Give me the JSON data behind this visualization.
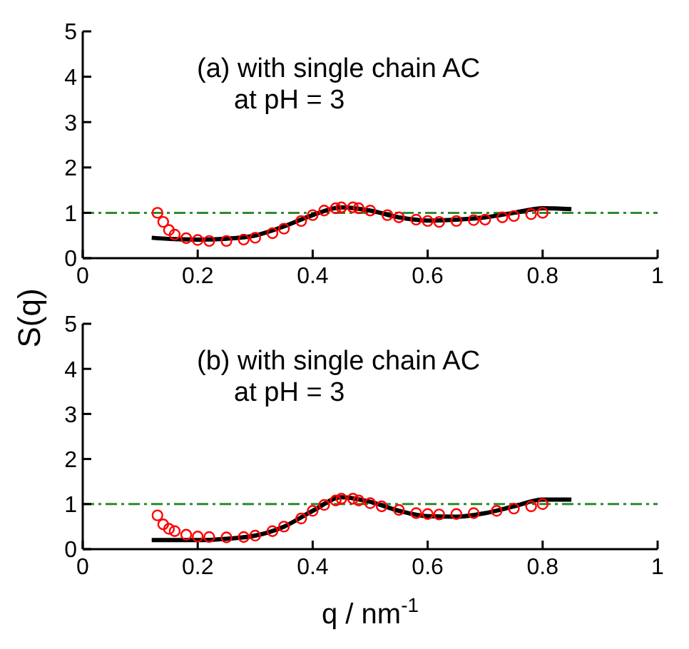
{
  "chart_data": [
    {
      "type": "scatter",
      "ylabel": "S(q)",
      "annotations": [
        "(a) with single chain AC",
        "at pH = 3"
      ],
      "xlim": [
        0,
        1
      ],
      "xticks": [
        0,
        0.2,
        0.4,
        0.6,
        0.8,
        1
      ],
      "ylim": [
        0,
        5
      ],
      "yticks": [
        0,
        1,
        2,
        3,
        4,
        5
      ],
      "grid": false,
      "legend": false,
      "ref_lines": [
        {
          "axis": "y",
          "value": 1,
          "color": "#2e8b2e",
          "line_style": "dashed"
        }
      ],
      "series": [
        {
          "type": "scatter",
          "marker": "circle",
          "color": "#ff0000",
          "x": [
            0.13,
            0.14,
            0.15,
            0.16,
            0.18,
            0.2,
            0.22,
            0.25,
            0.28,
            0.3,
            0.33,
            0.35,
            0.38,
            0.4,
            0.42,
            0.44,
            0.45,
            0.47,
            0.48,
            0.5,
            0.53,
            0.55,
            0.58,
            0.6,
            0.62,
            0.65,
            0.68,
            0.7,
            0.73,
            0.75,
            0.78,
            0.8
          ],
          "values": [
            1.0,
            0.8,
            0.62,
            0.52,
            0.44,
            0.4,
            0.38,
            0.38,
            0.41,
            0.45,
            0.55,
            0.65,
            0.82,
            0.95,
            1.05,
            1.1,
            1.12,
            1.12,
            1.1,
            1.05,
            0.95,
            0.9,
            0.85,
            0.82,
            0.8,
            0.82,
            0.84,
            0.85,
            0.9,
            0.93,
            0.97,
            1.0
          ]
        },
        {
          "type": "line",
          "color": "#000000",
          "x": [
            0.12,
            0.16,
            0.2,
            0.25,
            0.3,
            0.35,
            0.4,
            0.45,
            0.5,
            0.55,
            0.6,
            0.65,
            0.7,
            0.75,
            0.8,
            0.85
          ],
          "values": [
            0.45,
            0.42,
            0.41,
            0.43,
            0.5,
            0.7,
            0.95,
            1.12,
            1.05,
            0.9,
            0.83,
            0.85,
            0.9,
            1.0,
            1.1,
            1.08
          ]
        }
      ]
    },
    {
      "type": "scatter",
      "xlabel": "q / nm$^{-1}$",
      "annotations": [
        "(b) with single chain AC",
        "at pH = 3"
      ],
      "xlim": [
        0,
        1
      ],
      "xticks": [
        0,
        0.2,
        0.4,
        0.6,
        0.8,
        1
      ],
      "ylim": [
        0,
        5
      ],
      "yticks": [
        0,
        1,
        2,
        3,
        4,
        5
      ],
      "grid": false,
      "legend": false,
      "ref_lines": [
        {
          "axis": "y",
          "value": 1,
          "color": "#2e8b2e",
          "line_style": "dashed"
        }
      ],
      "series": [
        {
          "type": "scatter",
          "marker": "circle",
          "color": "#ff0000",
          "x": [
            0.13,
            0.14,
            0.15,
            0.16,
            0.18,
            0.2,
            0.22,
            0.25,
            0.28,
            0.3,
            0.33,
            0.35,
            0.38,
            0.4,
            0.42,
            0.44,
            0.45,
            0.47,
            0.48,
            0.5,
            0.52,
            0.55,
            0.58,
            0.6,
            0.62,
            0.65,
            0.68,
            0.72,
            0.75,
            0.78,
            0.8
          ],
          "values": [
            0.75,
            0.55,
            0.45,
            0.4,
            0.32,
            0.28,
            0.27,
            0.26,
            0.27,
            0.3,
            0.4,
            0.5,
            0.68,
            0.85,
            0.98,
            1.08,
            1.12,
            1.12,
            1.08,
            1.02,
            0.95,
            0.87,
            0.8,
            0.78,
            0.77,
            0.78,
            0.8,
            0.85,
            0.9,
            0.95,
            1.0
          ]
        },
        {
          "type": "line",
          "color": "#000000",
          "x": [
            0.12,
            0.16,
            0.2,
            0.25,
            0.3,
            0.35,
            0.4,
            0.45,
            0.5,
            0.55,
            0.6,
            0.65,
            0.7,
            0.75,
            0.8,
            0.85
          ],
          "values": [
            0.2,
            0.2,
            0.2,
            0.23,
            0.3,
            0.5,
            0.85,
            1.15,
            1.05,
            0.85,
            0.73,
            0.72,
            0.8,
            0.95,
            1.1,
            1.1
          ]
        }
      ]
    }
  ]
}
